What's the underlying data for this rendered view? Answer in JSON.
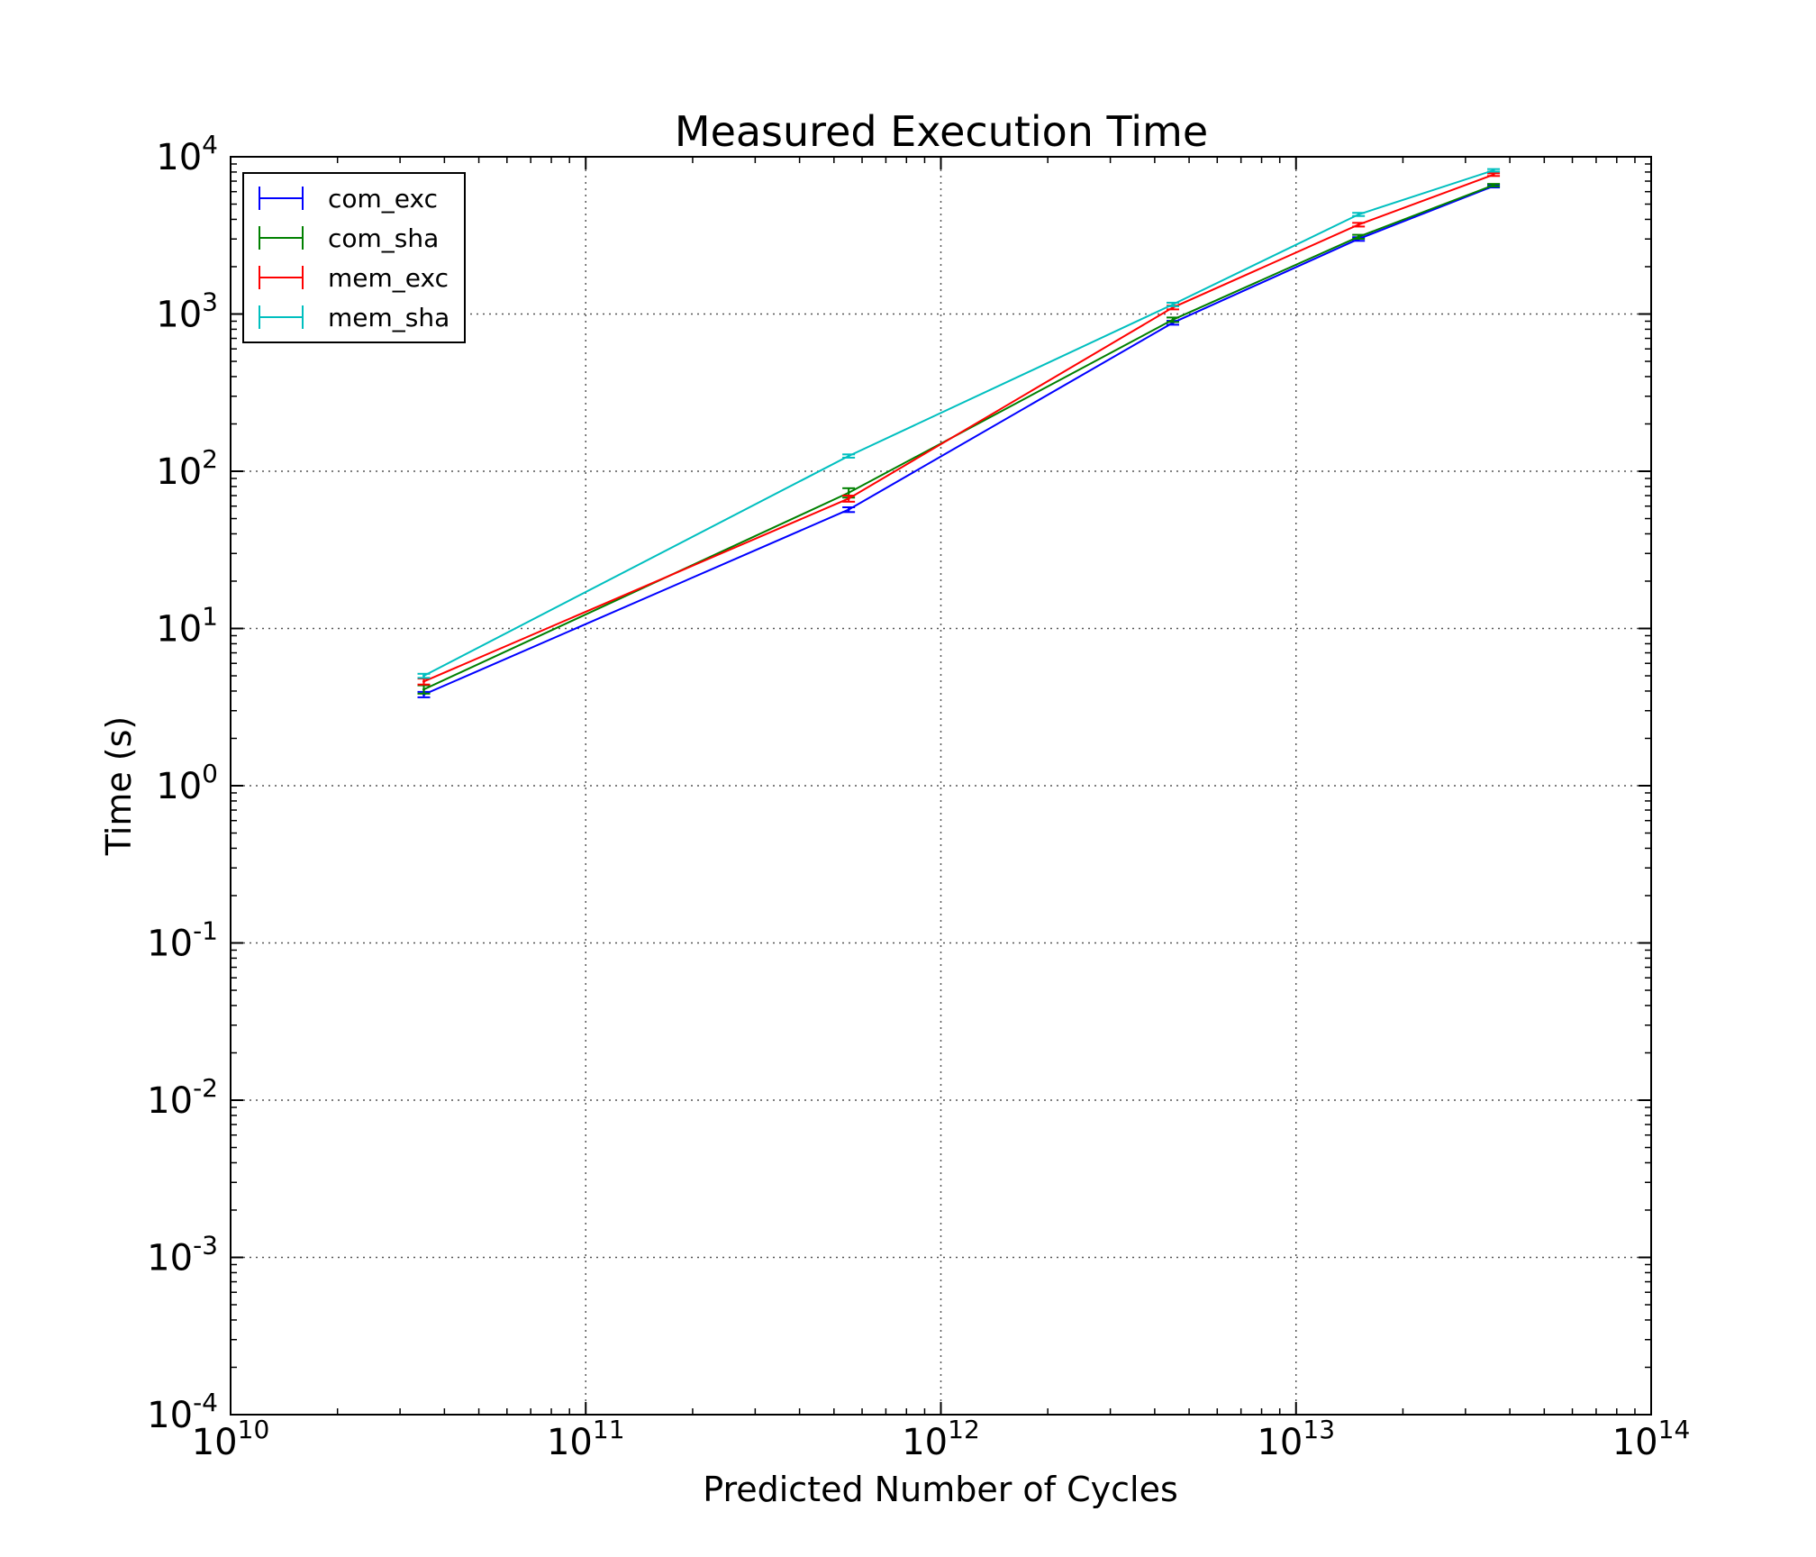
{
  "chart_data": {
    "type": "line",
    "title": "Measured Execution Time",
    "xlabel": "Predicted Number of Cycles",
    "ylabel": "Time (s)",
    "xscale": "log",
    "yscale": "log",
    "xlim": [
      10000000000.0,
      100000000000000.0
    ],
    "ylim": [
      0.0001,
      10000.0
    ],
    "xticks": [
      {
        "value": 10000000000.0,
        "base": "10",
        "exp": "10"
      },
      {
        "value": 100000000000.0,
        "base": "10",
        "exp": "11"
      },
      {
        "value": 1000000000000.0,
        "base": "10",
        "exp": "12"
      },
      {
        "value": 10000000000000.0,
        "base": "10",
        "exp": "13"
      },
      {
        "value": 100000000000000.0,
        "base": "10",
        "exp": "14"
      }
    ],
    "yticks": [
      {
        "value": 0.0001,
        "base": "10",
        "exp": "-4"
      },
      {
        "value": 0.001,
        "base": "10",
        "exp": "-3"
      },
      {
        "value": 0.01,
        "base": "10",
        "exp": "-2"
      },
      {
        "value": 0.1,
        "base": "10",
        "exp": "-1"
      },
      {
        "value": 1.0,
        "base": "10",
        "exp": "0"
      },
      {
        "value": 10.0,
        "base": "10",
        "exp": "1"
      },
      {
        "value": 100.0,
        "base": "10",
        "exp": "2"
      },
      {
        "value": 1000.0,
        "base": "10",
        "exp": "3"
      },
      {
        "value": 10000.0,
        "base": "10",
        "exp": "4"
      }
    ],
    "grid": true,
    "legend_position": "upper-left",
    "series": [
      {
        "name": "com_exc",
        "color": "#0000ff",
        "x": [
          35000000000.0,
          550000000000.0,
          4500000000000.0,
          15000000000000.0,
          36000000000000.0
        ],
        "y": [
          3.8,
          57,
          880,
          3000,
          6500
        ],
        "err": [
          0.15,
          2,
          25,
          80,
          120
        ]
      },
      {
        "name": "com_sha",
        "color": "#008000",
        "x": [
          35000000000.0,
          550000000000.0,
          4500000000000.0,
          15000000000000.0,
          36000000000000.0
        ],
        "y": [
          4.1,
          73,
          920,
          3100,
          6600
        ],
        "err": [
          0.25,
          5,
          30,
          90,
          120
        ]
      },
      {
        "name": "mem_exc",
        "color": "#ff0000",
        "x": [
          35000000000.0,
          550000000000.0,
          4500000000000.0,
          15000000000000.0,
          36000000000000.0
        ],
        "y": [
          4.6,
          67,
          1100,
          3700,
          7700
        ],
        "err": [
          0.2,
          3,
          30,
          100,
          150
        ]
      },
      {
        "name": "mem_sha",
        "color": "#00bfbf",
        "x": [
          35000000000.0,
          550000000000.0,
          4500000000000.0,
          15000000000000.0,
          36000000000000.0
        ],
        "y": [
          5.0,
          125,
          1150,
          4300,
          8200
        ],
        "err": [
          0.15,
          3,
          30,
          100,
          150
        ]
      }
    ]
  }
}
